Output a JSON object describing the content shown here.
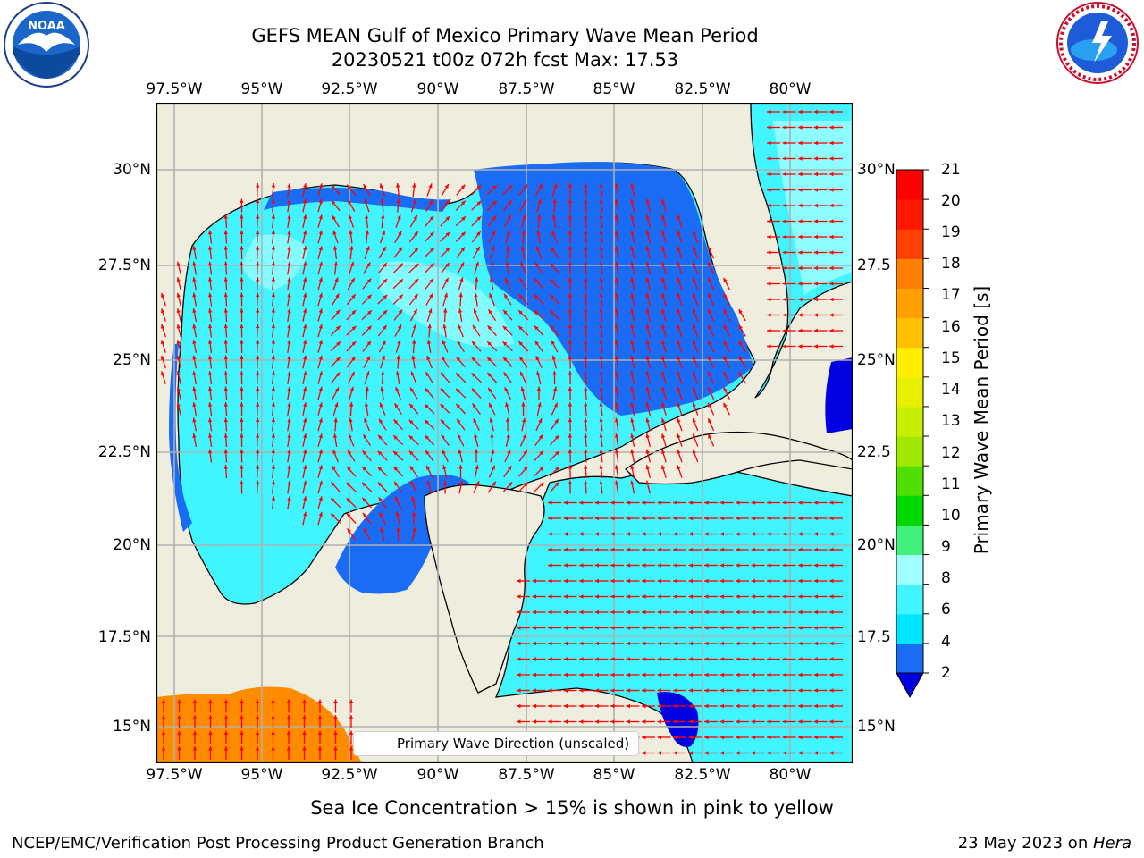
{
  "header": {
    "title_line1": "GEFS MEAN Gulf of Mexico Primary Wave Mean Period",
    "title_line2": "20230521 t00z 072h fcst   Max: 17.53"
  },
  "logos": {
    "left": {
      "name": "NOAA",
      "ring_text": "NATIONAL OCEANIC AND ATMOSPHERIC ADMINISTRATION",
      "bottom_text": "U.S. DEPARTMENT OF COMMERCE"
    },
    "right": {
      "ring_text": "NATIONAL WEATHER SERVICE"
    }
  },
  "map": {
    "lon_labels": [
      "97.5°W",
      "95°W",
      "92.5°W",
      "90°W",
      "87.5°W",
      "85°W",
      "82.5°W",
      "80°W"
    ],
    "lat_labels_left": [
      "30°N",
      "27.5°N",
      "25°N",
      "22.5°N",
      "20°N",
      "17.5°N",
      "15°N"
    ],
    "lat_labels_right": [
      "30°N",
      "27.5",
      "25°N",
      "22.5",
      "20°N",
      "17.5",
      "15°N"
    ],
    "land_color": "#efedde",
    "arrow_color": "#ff0000",
    "legend_label": "Primary Wave Direction (unscaled)"
  },
  "colorbar": {
    "label": "Primary Wave Mean Period [s]",
    "ticks": [
      "2",
      "4",
      "6",
      "8",
      "9",
      "10",
      "11",
      "12",
      "13",
      "14",
      "15",
      "16",
      "17",
      "18",
      "19",
      "20",
      "21"
    ],
    "colors": [
      "#0000e0",
      "#1a6cf5",
      "#00e5ff",
      "#40f5ff",
      "#a0ffff",
      "#40f07a",
      "#00d800",
      "#50e000",
      "#a0e800",
      "#c8ef00",
      "#e8f000",
      "#ffee00",
      "#ffc000",
      "#ffa000",
      "#ff8000",
      "#ff4000",
      "#ff1800",
      "#ff0000"
    ]
  },
  "footer": {
    "note": "Sea Ice Concentration > 15% is shown in pink to yellow",
    "left": "NCEP/EMC/Verification Post Processing Product Generation Branch",
    "right_prefix": "23 May 2023 on ",
    "right_machine": "Hera"
  }
}
